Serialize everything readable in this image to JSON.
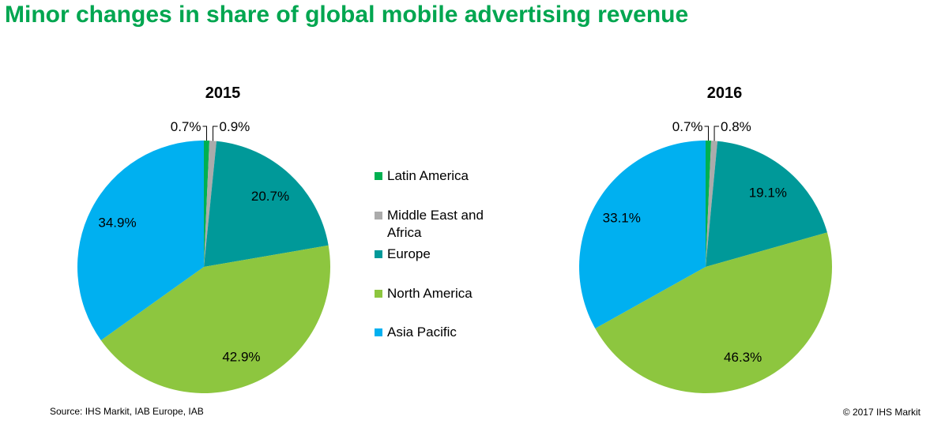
{
  "title": "Minor changes in share of global mobile advertising revenue",
  "source": "Source: IHS Markit, IAB Europe, IAB",
  "copyright": "© 2017 IHS Markit",
  "legend": [
    {
      "label": "Latin America",
      "color": "#00B050"
    },
    {
      "label": "Middle East and Africa",
      "color": "#ABABAB"
    },
    {
      "label": "Europe",
      "color": "#009999"
    },
    {
      "label": "North America",
      "color": "#8DC63F"
    },
    {
      "label": "Asia Pacific",
      "color": "#00B0F0"
    }
  ],
  "chart_data": [
    {
      "type": "pie",
      "title": "2015",
      "categories": [
        "Latin America",
        "Middle East and Africa",
        "Europe",
        "North America",
        "Asia Pacific"
      ],
      "values": [
        0.7,
        0.9,
        20.7,
        42.9,
        34.9
      ],
      "labels": [
        "0.7%",
        "0.9%",
        "20.7%",
        "42.9%",
        "34.9%"
      ],
      "colors": [
        "#00B050",
        "#ABABAB",
        "#009999",
        "#8DC63F",
        "#00B0F0"
      ],
      "start": "12 o'clock, clockwise"
    },
    {
      "type": "pie",
      "title": "2016",
      "categories": [
        "Latin America",
        "Middle East and Africa",
        "Europe",
        "North America",
        "Asia Pacific"
      ],
      "values": [
        0.7,
        0.8,
        19.1,
        46.3,
        33.1
      ],
      "labels": [
        "0.7%",
        "0.8%",
        "19.1%",
        "46.3%",
        "33.1%"
      ],
      "colors": [
        "#00B050",
        "#ABABAB",
        "#009999",
        "#8DC63F",
        "#00B0F0"
      ],
      "start": "12 o'clock, clockwise"
    }
  ]
}
